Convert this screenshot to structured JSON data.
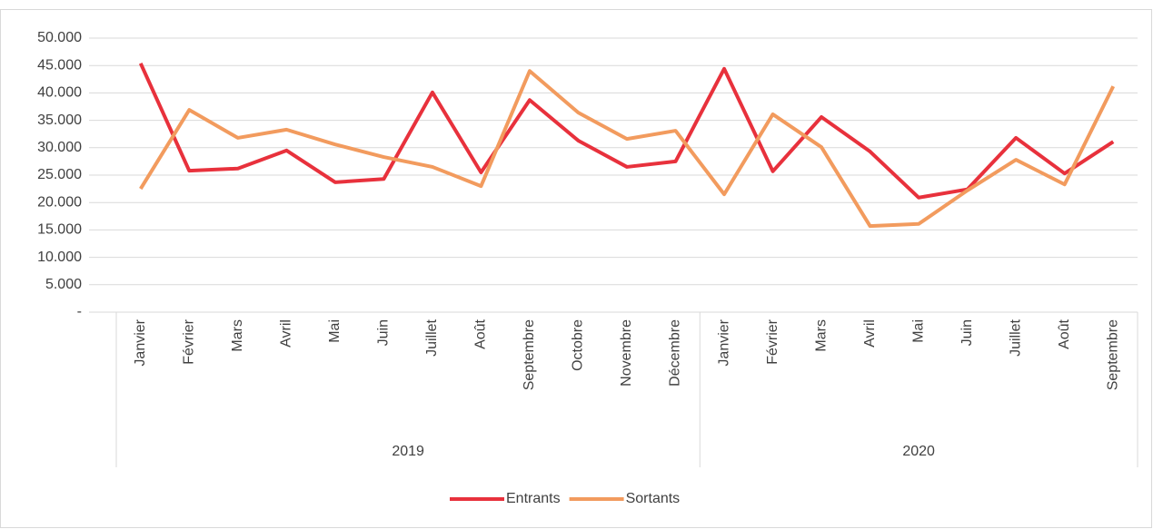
{
  "chart_data": {
    "type": "line",
    "groups": [
      {
        "label": "2019",
        "categories": [
          "Janvier",
          "Février",
          "Mars",
          "Avril",
          "Mai",
          "Juin",
          "Juillet",
          "Août",
          "Septembre",
          "Octobre",
          "Novembre",
          "Décembre"
        ]
      },
      {
        "label": "2020",
        "categories": [
          "Janvier",
          "Février",
          "Mars",
          "Avril",
          "Mai",
          "Juin",
          "Juillet",
          "Août",
          "Septembre"
        ]
      }
    ],
    "series": [
      {
        "name": "Entrants",
        "color": "#e8313c",
        "values": [
          45400,
          25800,
          26200,
          29500,
          23700,
          24300,
          40100,
          25500,
          38700,
          31300,
          26500,
          27500,
          44400,
          25700,
          35600,
          29300,
          20900,
          22400,
          31800,
          25300,
          31100
        ]
      },
      {
        "name": "Sortants",
        "color": "#f29b5e",
        "values": [
          22500,
          36900,
          31800,
          33300,
          30600,
          28300,
          26500,
          23000,
          44000,
          36400,
          31600,
          33100,
          21500,
          36100,
          30100,
          15700,
          16100,
          22200,
          27800,
          23300,
          41200
        ]
      }
    ],
    "ylim": [
      0,
      50000
    ],
    "yticks": [
      {
        "value": 0,
        "label": "-"
      },
      {
        "value": 5000,
        "label": "5.000"
      },
      {
        "value": 10000,
        "label": "10.000"
      },
      {
        "value": 15000,
        "label": "15.000"
      },
      {
        "value": 20000,
        "label": "20.000"
      },
      {
        "value": 25000,
        "label": "25.000"
      },
      {
        "value": 30000,
        "label": "30.000"
      },
      {
        "value": 35000,
        "label": "35.000"
      },
      {
        "value": 40000,
        "label": "40.000"
      },
      {
        "value": 45000,
        "label": "45.000"
      },
      {
        "value": 50000,
        "label": "50.000"
      }
    ],
    "grid": true,
    "legend": "bottom"
  }
}
